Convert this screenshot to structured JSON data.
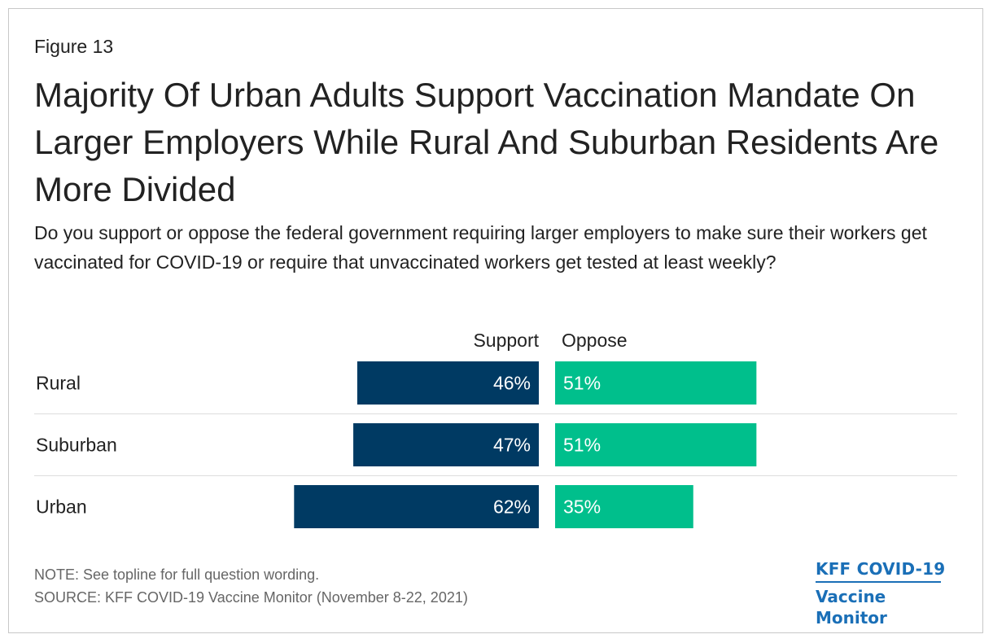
{
  "figure_label": "Figure 13",
  "title": "Majority Of Urban Adults Support Vaccination Mandate On Larger Employers While Rural And Suburban Residents Are More Divided",
  "subtitle": "Do you support or oppose the federal government requiring larger employers to make sure their workers get vaccinated for COVID-19 or require that unvaccinated workers get tested at least weekly?",
  "note": "NOTE: See topline for full question wording.",
  "source": "SOURCE: KFF COVID-19 Vaccine Monitor (November 8-22, 2021)",
  "logo": {
    "line1": "KFF COVID-19",
    "line2": "Vaccine Monitor"
  },
  "colors": {
    "support": "#003a63",
    "oppose": "#00bf8c",
    "divider": "#dddddd",
    "logo": "#1a6fb7"
  },
  "chart_data": {
    "type": "bar",
    "orientation": "horizontal-diverging",
    "title": "Majority Of Urban Adults Support Vaccination Mandate On Larger Employers While Rural And Suburban Residents Are More Divided",
    "categories": [
      "Rural",
      "Suburban",
      "Urban"
    ],
    "series": [
      {
        "name": "Support",
        "values": [
          46,
          47,
          62
        ],
        "labels": [
          "46%",
          "47%",
          "62%"
        ]
      },
      {
        "name": "Oppose",
        "values": [
          51,
          51,
          35
        ],
        "labels": [
          "51%",
          "51%",
          "35%"
        ]
      }
    ],
    "unit": "%",
    "xlabel": "",
    "ylabel": "",
    "legend": [
      "Support",
      "Oppose"
    ]
  }
}
